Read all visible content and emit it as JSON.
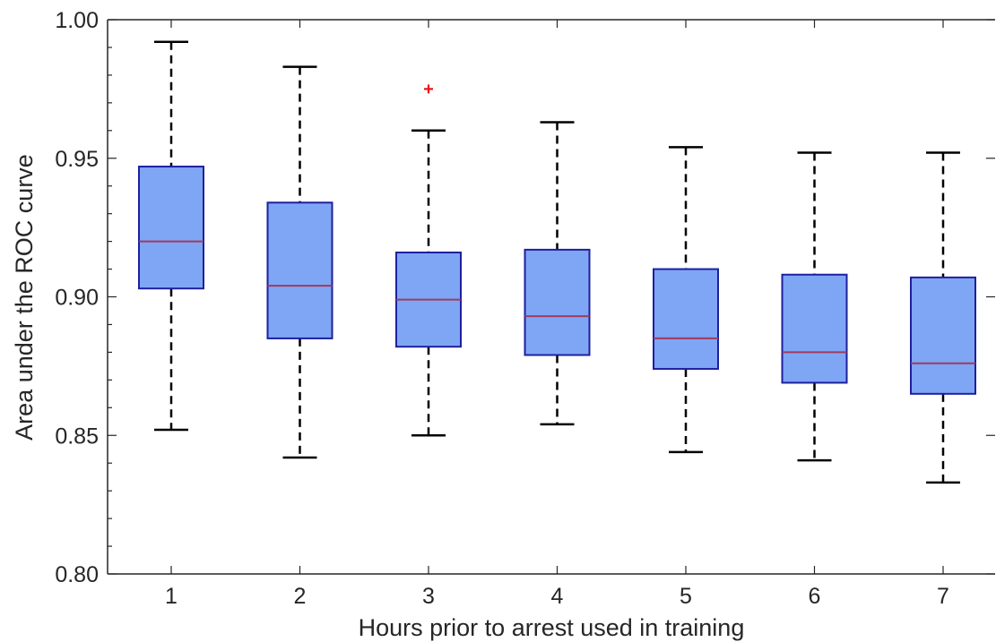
{
  "chart_data": {
    "type": "box",
    "title": "",
    "xlabel": "Hours prior to arrest used in training",
    "ylabel": "Area under the ROC curve",
    "categories": [
      "1",
      "2",
      "3",
      "4",
      "5",
      "6",
      "7"
    ],
    "ylim": [
      0.8,
      1.0
    ],
    "yticks": [
      "0.80",
      "0.85",
      "0.90",
      "0.95",
      "1.00"
    ],
    "grid": false,
    "boxes": [
      {
        "category": "1",
        "whisker_low": 0.852,
        "q1": 0.903,
        "median": 0.92,
        "q3": 0.947,
        "whisker_high": 0.992,
        "outliers": []
      },
      {
        "category": "2",
        "whisker_low": 0.842,
        "q1": 0.885,
        "median": 0.904,
        "q3": 0.934,
        "whisker_high": 0.983,
        "outliers": []
      },
      {
        "category": "3",
        "whisker_low": 0.85,
        "q1": 0.882,
        "median": 0.899,
        "q3": 0.916,
        "whisker_high": 0.96,
        "outliers": [
          0.975
        ]
      },
      {
        "category": "4",
        "whisker_low": 0.854,
        "q1": 0.879,
        "median": 0.893,
        "q3": 0.917,
        "whisker_high": 0.963,
        "outliers": []
      },
      {
        "category": "5",
        "whisker_low": 0.844,
        "q1": 0.874,
        "median": 0.885,
        "q3": 0.91,
        "whisker_high": 0.954,
        "outliers": []
      },
      {
        "category": "6",
        "whisker_low": 0.841,
        "q1": 0.869,
        "median": 0.88,
        "q3": 0.908,
        "whisker_high": 0.952,
        "outliers": []
      },
      {
        "category": "7",
        "whisker_low": 0.833,
        "q1": 0.865,
        "median": 0.876,
        "q3": 0.907,
        "whisker_high": 0.952,
        "outliers": []
      }
    ],
    "colors": {
      "box_fill": "#7ea6f5",
      "box_edge": "#1f1f9e",
      "median": "#a23a5a",
      "whisker": "#000000",
      "outlier": "#e8141e",
      "axis": "#262626"
    }
  }
}
